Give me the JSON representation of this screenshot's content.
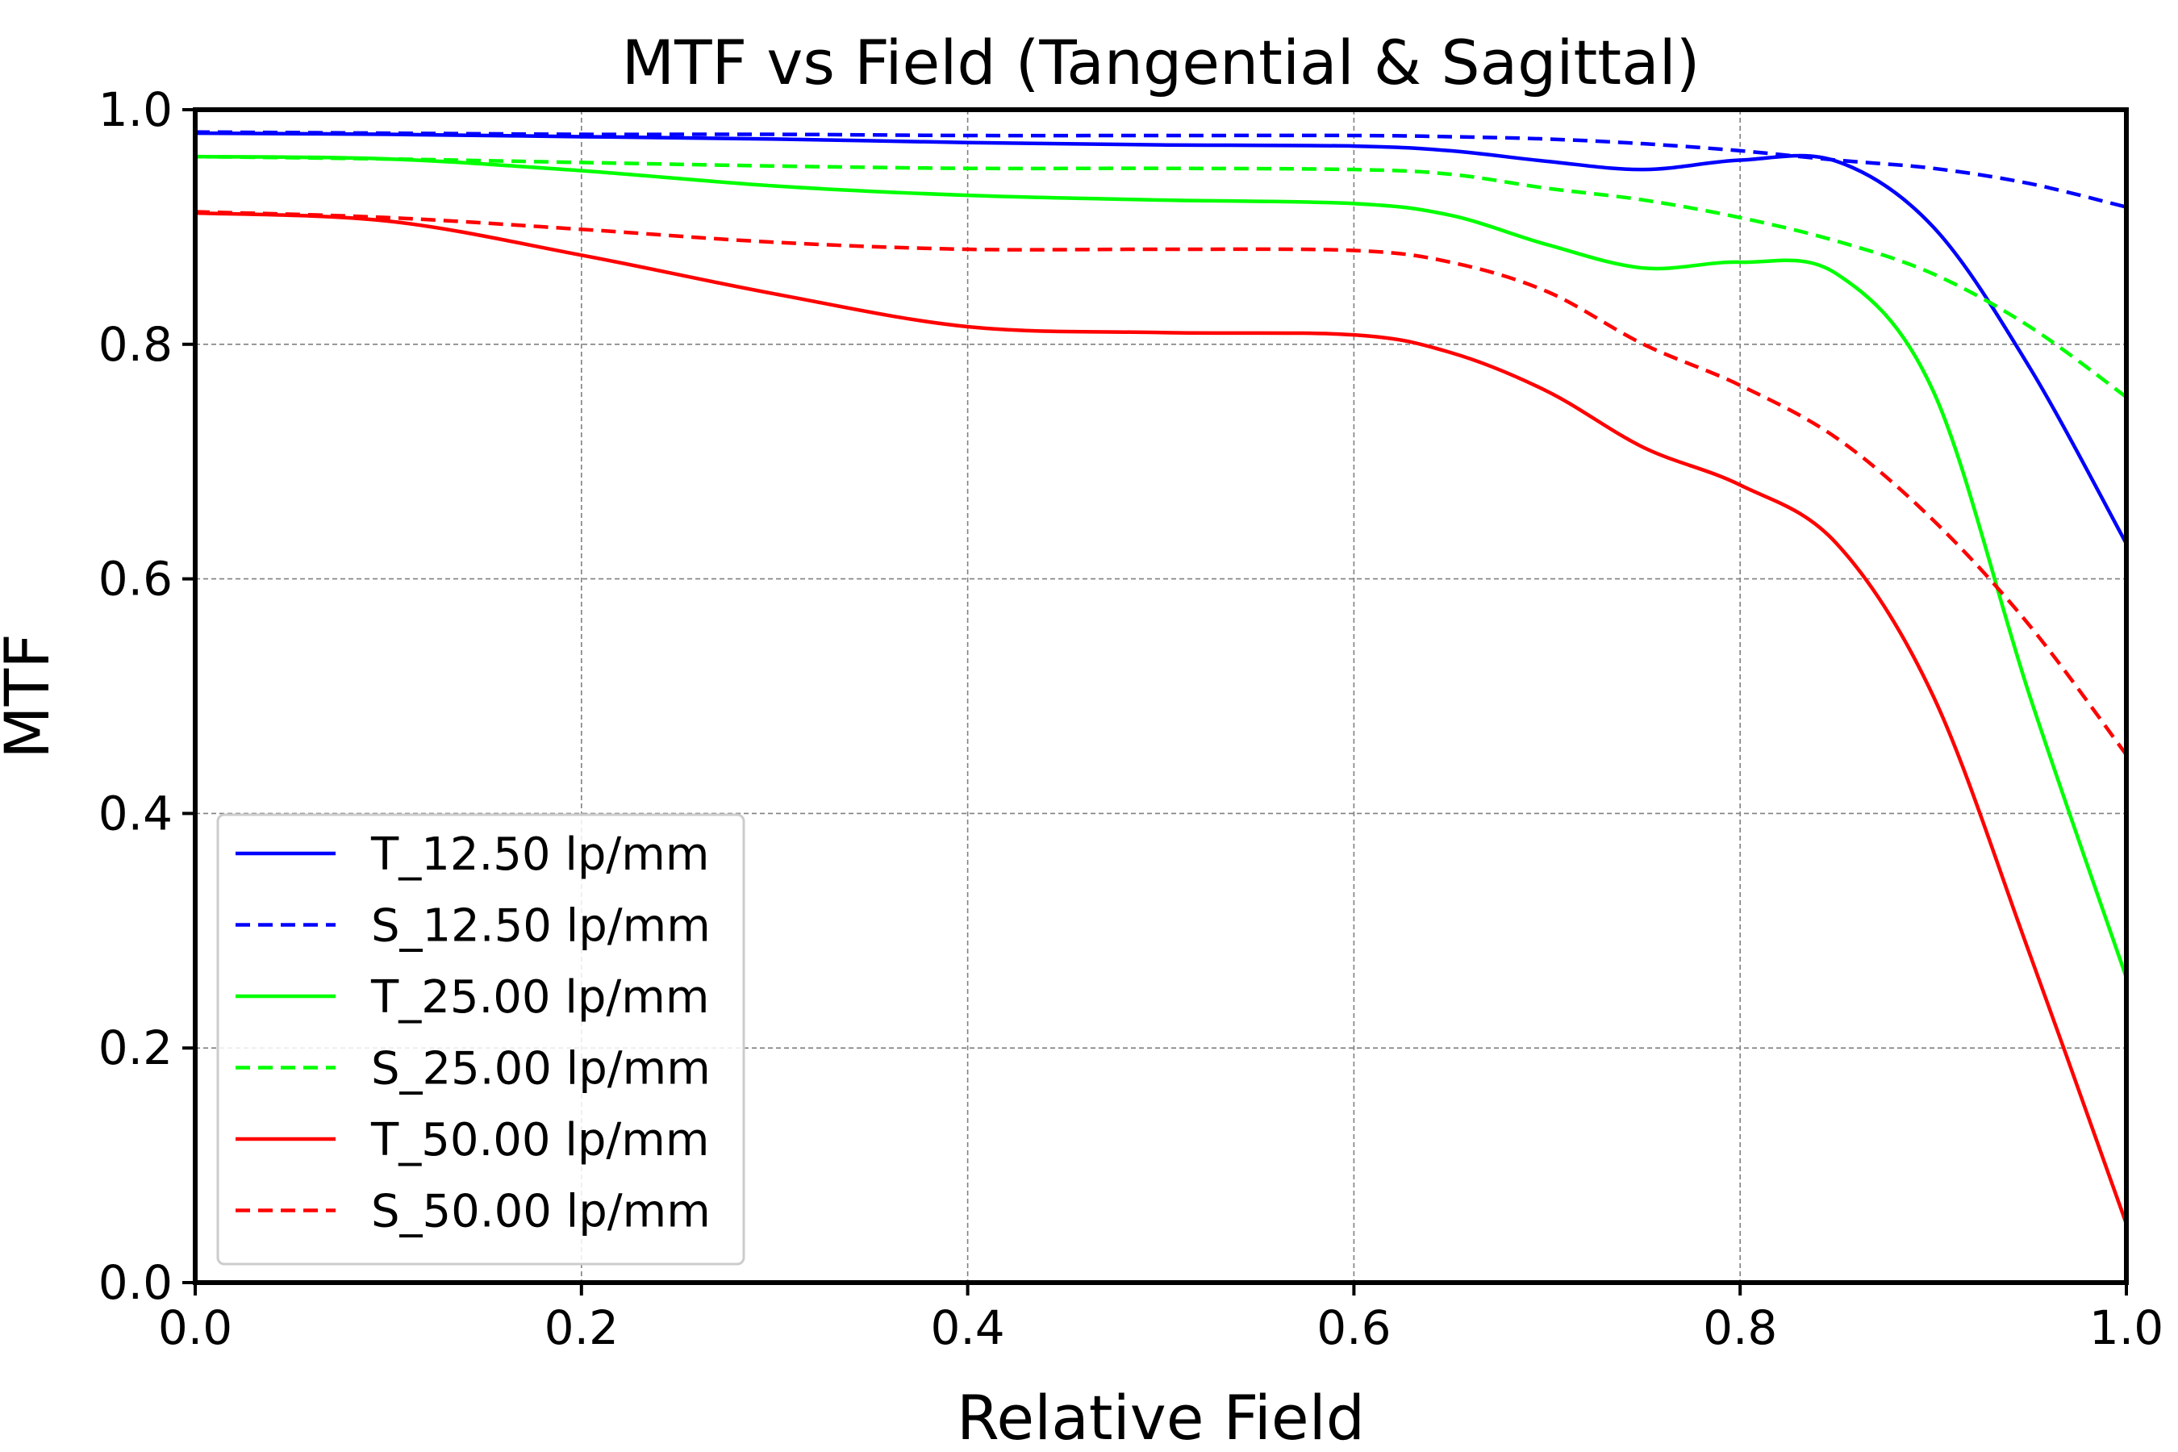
{
  "chart_data": {
    "type": "line",
    "title": "MTF vs Field (Tangential & Sagittal)",
    "xlabel": "Relative Field",
    "ylabel": "MTF",
    "xlim": [
      0.0,
      1.0
    ],
    "ylim": [
      0.0,
      1.0
    ],
    "xticks": [
      "0.0",
      "0.2",
      "0.4",
      "0.6",
      "0.8",
      "1.0"
    ],
    "yticks": [
      "0.0",
      "0.2",
      "0.4",
      "0.6",
      "0.8",
      "1.0"
    ],
    "grid": true,
    "legend_position": "lower-left",
    "x": [
      0.0,
      0.1,
      0.2,
      0.3,
      0.4,
      0.5,
      0.6,
      0.65,
      0.7,
      0.75,
      0.8,
      0.85,
      0.9,
      0.95,
      1.0
    ],
    "series": [
      {
        "name": "T_12.50 lp/mm",
        "color": "#0000ff",
        "style": "solid",
        "values": [
          0.98,
          0.979,
          0.977,
          0.975,
          0.972,
          0.97,
          0.969,
          0.965,
          0.956,
          0.949,
          0.957,
          0.956,
          0.9,
          0.78,
          0.63
        ]
      },
      {
        "name": "S_12.50 lp/mm",
        "color": "#0000ff",
        "style": "dashed",
        "values": [
          0.981,
          0.98,
          0.979,
          0.979,
          0.978,
          0.978,
          0.978,
          0.977,
          0.975,
          0.971,
          0.965,
          0.957,
          0.95,
          0.937,
          0.917
        ]
      },
      {
        "name": "T_25.00 lp/mm",
        "color": "#00ff00",
        "style": "solid",
        "values": [
          0.96,
          0.958,
          0.948,
          0.935,
          0.927,
          0.923,
          0.92,
          0.91,
          0.885,
          0.865,
          0.87,
          0.86,
          0.76,
          0.5,
          0.26
        ]
      },
      {
        "name": "S_25.00 lp/mm",
        "color": "#00ff00",
        "style": "dashed",
        "values": [
          0.96,
          0.958,
          0.955,
          0.952,
          0.95,
          0.95,
          0.949,
          0.945,
          0.933,
          0.923,
          0.908,
          0.888,
          0.86,
          0.815,
          0.755
        ]
      },
      {
        "name": "T_50.00 lp/mm",
        "color": "#ff0000",
        "style": "solid",
        "values": [
          0.912,
          0.905,
          0.876,
          0.843,
          0.815,
          0.81,
          0.808,
          0.793,
          0.76,
          0.712,
          0.68,
          0.63,
          0.5,
          0.28,
          0.05
        ]
      },
      {
        "name": "S_50.00 lp/mm",
        "color": "#ff0000",
        "style": "dashed",
        "values": [
          0.913,
          0.908,
          0.898,
          0.887,
          0.881,
          0.881,
          0.88,
          0.87,
          0.845,
          0.8,
          0.765,
          0.72,
          0.65,
          0.56,
          0.45
        ]
      }
    ]
  }
}
